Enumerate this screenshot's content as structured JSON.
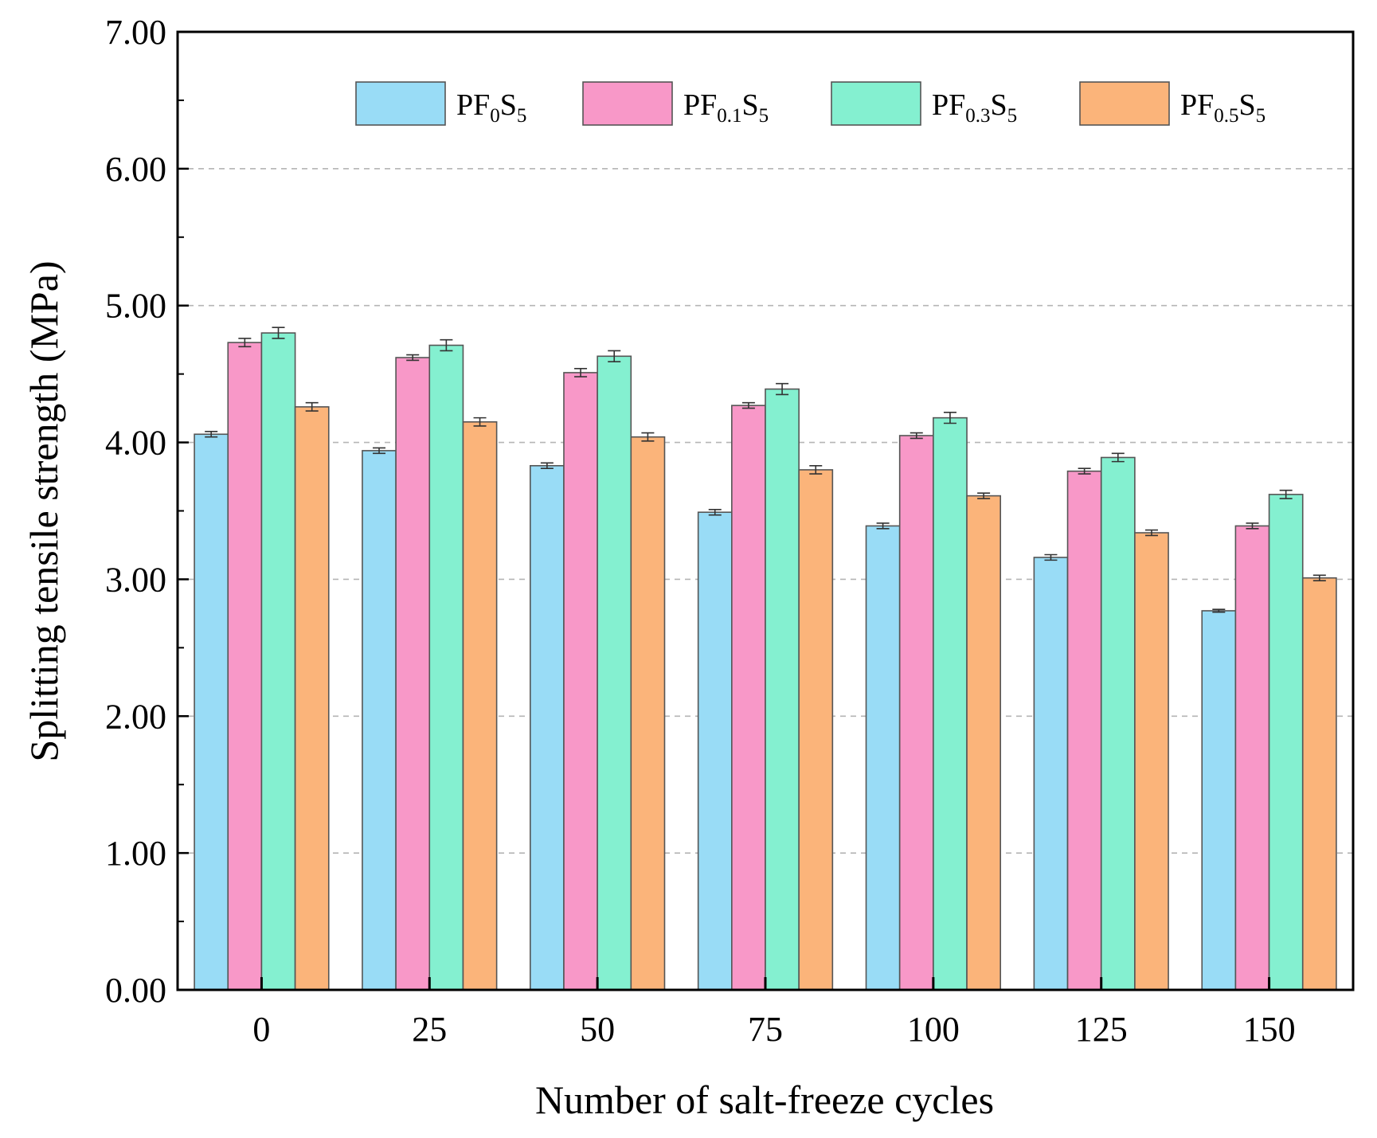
{
  "chart_data": {
    "type": "bar",
    "title": "",
    "xlabel": "Number of salt-freeze cycles",
    "ylabel": "Splitting tensile strength (MPa)",
    "ylim": [
      0,
      7
    ],
    "yticks": [
      "0.00",
      "1.00",
      "2.00",
      "3.00",
      "4.00",
      "5.00",
      "6.00",
      "7.00"
    ],
    "grid": "horizontal dashed",
    "legend_position": "top",
    "categories": [
      "0",
      "25",
      "50",
      "75",
      "100",
      "125",
      "150"
    ],
    "series": [
      {
        "name": "PF0S5",
        "base": "PF",
        "sub1": "0",
        "mid": "S",
        "sub2": "5",
        "color": "#99dcf6",
        "values": [
          4.06,
          3.94,
          3.83,
          3.49,
          3.39,
          3.16,
          2.77
        ],
        "errors": [
          0.02,
          0.02,
          0.02,
          0.02,
          0.02,
          0.02,
          0.01
        ]
      },
      {
        "name": "PF0.1S5",
        "base": "PF",
        "sub1": "0.1",
        "mid": "S",
        "sub2": "5",
        "color": "#f898c8",
        "values": [
          4.73,
          4.62,
          4.51,
          4.27,
          4.05,
          3.79,
          3.39
        ],
        "errors": [
          0.03,
          0.02,
          0.03,
          0.02,
          0.02,
          0.02,
          0.02
        ]
      },
      {
        "name": "PF0.3S5",
        "base": "PF",
        "sub1": "0.3",
        "mid": "S",
        "sub2": "5",
        "color": "#84f0d0",
        "values": [
          4.8,
          4.71,
          4.63,
          4.39,
          4.18,
          3.89,
          3.62
        ],
        "errors": [
          0.04,
          0.04,
          0.04,
          0.04,
          0.04,
          0.03,
          0.03
        ]
      },
      {
        "name": "PF0.5S5",
        "base": "PF",
        "sub1": "0.5",
        "mid": "S",
        "sub2": "5",
        "color": "#fbb47a",
        "values": [
          4.26,
          4.15,
          4.04,
          3.8,
          3.61,
          3.34,
          3.01
        ],
        "errors": [
          0.03,
          0.03,
          0.03,
          0.03,
          0.02,
          0.02,
          0.02
        ]
      }
    ]
  }
}
